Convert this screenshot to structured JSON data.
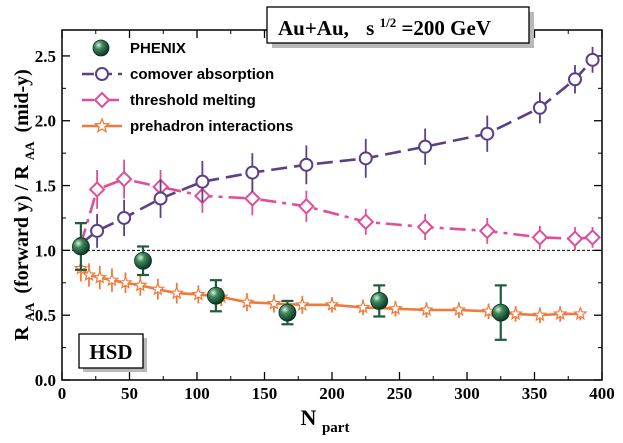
{
  "chart_data": {
    "type": "line",
    "title_box": {
      "system": "Au+Au,",
      "energy_label": "s",
      "energy_sup": "1/2",
      "energy_value": "=200 GeV"
    },
    "model_label": "HSD",
    "xlabel": {
      "main": "N",
      "sub": "part"
    },
    "ylabel": {
      "r1": "R",
      "s1": "AA",
      "mid": "(forward y) / R",
      "s2": "AA",
      "tail": "(mid-y)"
    },
    "xlim": [
      0,
      400
    ],
    "ylim": [
      0.0,
      2.7
    ],
    "x_ticks": [
      0,
      50,
      100,
      150,
      200,
      250,
      300,
      350,
      400
    ],
    "x_tick_labels": [
      "0",
      "50",
      "100",
      "150",
      "200",
      "250",
      "300",
      "350",
      "400"
    ],
    "y_ticks": [
      0.0,
      0.5,
      1.0,
      1.5,
      2.0,
      2.5
    ],
    "y_tick_labels": [
      "0.0",
      "0.5",
      "1.0",
      "1.5",
      "2.0",
      "2.5"
    ],
    "reference_line": 1.0,
    "legend_position": "top-left",
    "series": [
      {
        "name": "PHENIX",
        "marker": "filled-sphere",
        "color": "#1f5c3c",
        "points": [
          {
            "x": 14,
            "y": 1.03,
            "err": 0.18
          },
          {
            "x": 60,
            "y": 0.92,
            "err": 0.11
          },
          {
            "x": 114,
            "y": 0.65,
            "err": 0.12
          },
          {
            "x": 167,
            "y": 0.52,
            "err": 0.09
          },
          {
            "x": 235,
            "y": 0.61,
            "err": 0.12
          },
          {
            "x": 325,
            "y": 0.52,
            "err": 0.21
          }
        ]
      },
      {
        "name": "comover absorption",
        "marker": "open-circle",
        "color": "#5b3f88",
        "line": "dashed",
        "points": [
          {
            "x": 14,
            "y": 1.05,
            "err": 0.1
          },
          {
            "x": 26,
            "y": 1.15,
            "err": 0.13
          },
          {
            "x": 46,
            "y": 1.25,
            "err": 0.14
          },
          {
            "x": 73,
            "y": 1.4,
            "err": 0.15
          },
          {
            "x": 104,
            "y": 1.53,
            "err": 0.16
          },
          {
            "x": 141,
            "y": 1.6,
            "err": 0.15
          },
          {
            "x": 181,
            "y": 1.66,
            "err": 0.15
          },
          {
            "x": 225,
            "y": 1.71,
            "err": 0.15
          },
          {
            "x": 269,
            "y": 1.8,
            "err": 0.14
          },
          {
            "x": 315,
            "y": 1.9,
            "err": 0.14
          },
          {
            "x": 354,
            "y": 2.1,
            "err": 0.12
          },
          {
            "x": 380,
            "y": 2.32,
            "err": 0.11
          },
          {
            "x": 393,
            "y": 2.47,
            "err": 0.1
          }
        ]
      },
      {
        "name": "threshold melting",
        "marker": "open-diamond",
        "color": "#e04e98",
        "line": "dash-dot",
        "points": [
          {
            "x": 14,
            "y": 1.05,
            "err": 0.1
          },
          {
            "x": 26,
            "y": 1.47,
            "err": 0.15
          },
          {
            "x": 46,
            "y": 1.55,
            "err": 0.15
          },
          {
            "x": 73,
            "y": 1.49,
            "err": 0.13
          },
          {
            "x": 104,
            "y": 1.42,
            "err": 0.13
          },
          {
            "x": 141,
            "y": 1.4,
            "err": 0.13
          },
          {
            "x": 181,
            "y": 1.34,
            "err": 0.12
          },
          {
            "x": 225,
            "y": 1.22,
            "err": 0.1
          },
          {
            "x": 269,
            "y": 1.18,
            "err": 0.1
          },
          {
            "x": 315,
            "y": 1.15,
            "err": 0.1
          },
          {
            "x": 354,
            "y": 1.1,
            "err": 0.09
          },
          {
            "x": 380,
            "y": 1.09,
            "err": 0.09
          },
          {
            "x": 393,
            "y": 1.1,
            "err": 0.08
          }
        ]
      },
      {
        "name": "prehadron interactions",
        "marker": "open-star",
        "color": "#f07a3c",
        "line": "solid",
        "points": [
          {
            "x": 14,
            "y": 0.86,
            "err": 0.1
          },
          {
            "x": 20,
            "y": 0.81,
            "err": 0.09
          },
          {
            "x": 28,
            "y": 0.79,
            "err": 0.09
          },
          {
            "x": 37,
            "y": 0.77,
            "err": 0.09
          },
          {
            "x": 47,
            "y": 0.75,
            "err": 0.08
          },
          {
            "x": 58,
            "y": 0.73,
            "err": 0.08
          },
          {
            "x": 71,
            "y": 0.7,
            "err": 0.08
          },
          {
            "x": 85,
            "y": 0.67,
            "err": 0.08
          },
          {
            "x": 101,
            "y": 0.66,
            "err": 0.07
          },
          {
            "x": 118,
            "y": 0.64,
            "err": 0.07
          },
          {
            "x": 137,
            "y": 0.6,
            "err": 0.07
          },
          {
            "x": 157,
            "y": 0.59,
            "err": 0.07
          },
          {
            "x": 178,
            "y": 0.58,
            "err": 0.07
          },
          {
            "x": 200,
            "y": 0.58,
            "err": 0.06
          },
          {
            "x": 223,
            "y": 0.56,
            "err": 0.06
          },
          {
            "x": 247,
            "y": 0.55,
            "err": 0.06
          },
          {
            "x": 270,
            "y": 0.54,
            "err": 0.06
          },
          {
            "x": 294,
            "y": 0.54,
            "err": 0.06
          },
          {
            "x": 316,
            "y": 0.53,
            "err": 0.06
          },
          {
            "x": 336,
            "y": 0.51,
            "err": 0.06
          },
          {
            "x": 354,
            "y": 0.5,
            "err": 0.06
          },
          {
            "x": 369,
            "y": 0.51,
            "err": 0.06
          },
          {
            "x": 384,
            "y": 0.51,
            "err": 0.05
          }
        ]
      }
    ]
  }
}
